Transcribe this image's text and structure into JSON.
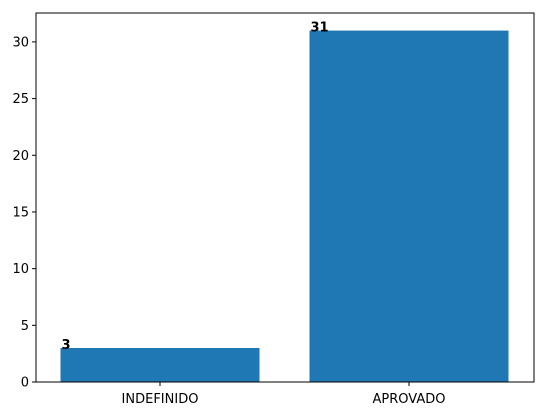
{
  "chart_data": {
    "type": "bar",
    "categories": [
      "INDEFINIDO",
      "APROVADO"
    ],
    "values": [
      3,
      31
    ],
    "data_labels": [
      "3",
      "31"
    ],
    "title": "",
    "xlabel": "",
    "ylabel": "",
    "ylim": [
      0,
      32.55
    ],
    "yticks": [
      0,
      5,
      10,
      15,
      20,
      25,
      30
    ],
    "grid": false,
    "bar_color": "#1f77b4"
  }
}
